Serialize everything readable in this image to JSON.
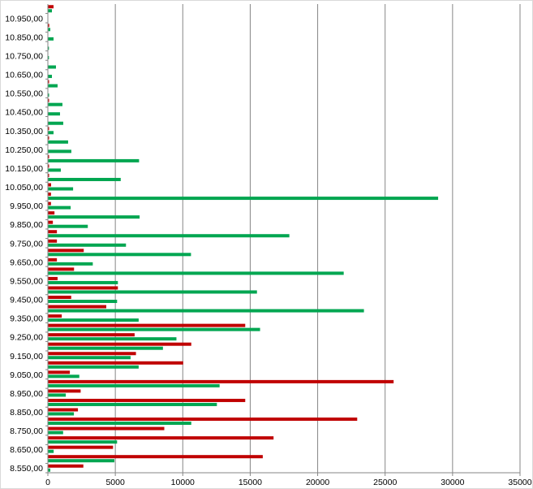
{
  "chart_data": {
    "type": "bar",
    "orientation": "horizontal",
    "title": "",
    "xlabel": "",
    "ylabel": "",
    "xlim": [
      0,
      35000
    ],
    "x_ticks": [
      0,
      5000,
      10000,
      15000,
      20000,
      25000,
      30000,
      35000
    ],
    "x_tick_labels": [
      "0",
      "5000",
      "10000",
      "15000",
      "20000",
      "25000",
      "30000",
      "35000"
    ],
    "grid": "vertical",
    "legend": "none",
    "categories": [
      8550,
      8600,
      8650,
      8700,
      8750,
      8800,
      8850,
      8900,
      8950,
      9000,
      9050,
      9100,
      9150,
      9200,
      9250,
      9300,
      9350,
      9400,
      9450,
      9500,
      9550,
      9600,
      9650,
      9700,
      9750,
      9800,
      9850,
      9900,
      9950,
      10000,
      10050,
      10100,
      10150,
      10200,
      10250,
      10300,
      10350,
      10400,
      10450,
      10500,
      10550,
      10600,
      10650,
      10700,
      10750,
      10800,
      10850,
      10900,
      10950,
      11000
    ],
    "category_labels_shown": [
      "8.550,00",
      "8.650,00",
      "8.750,00",
      "8.850,00",
      "8.950,00",
      "9.050,00",
      "9.150,00",
      "9.250,00",
      "9.350,00",
      "9.450,00",
      "9.550,00",
      "9.650,00",
      "9.750,00",
      "9.850,00",
      "9.950,00",
      "10.050,00",
      "10.150,00",
      "10.250,00",
      "10.350,00",
      "10.450,00",
      "10.550,00",
      "10.650,00",
      "10.750,00",
      "10.850,00",
      "10.950,00"
    ],
    "series": [
      {
        "color": "#c00000",
        "values": [
          2600,
          15900,
          4800,
          16700,
          8600,
          22900,
          2200,
          14600,
          2400,
          25600,
          1600,
          10000,
          6500,
          10600,
          6400,
          14600,
          1000,
          4300,
          1700,
          5160,
          690,
          1910,
          640,
          2630,
          640,
          640,
          340,
          460,
          200,
          200,
          210,
          60,
          60,
          60,
          0,
          60,
          60,
          0,
          0,
          60,
          0,
          60,
          0,
          0,
          0,
          0,
          0,
          70,
          0,
          390
        ]
      },
      {
        "color": "#00a651",
        "values": [
          150,
          4900,
          400,
          5100,
          1100,
          10600,
          1900,
          12500,
          1300,
          12700,
          2300,
          6700,
          6100,
          8500,
          9500,
          15700,
          6700,
          23400,
          5100,
          15470,
          5160,
          21900,
          3300,
          10580,
          5760,
          17870,
          2930,
          6770,
          1660,
          28900,
          1840,
          5370,
          930,
          6730,
          1710,
          1470,
          390,
          1110,
          870,
          1050,
          60,
          690,
          270,
          570,
          50,
          50,
          390,
          150,
          0,
          270
        ]
      }
    ]
  }
}
